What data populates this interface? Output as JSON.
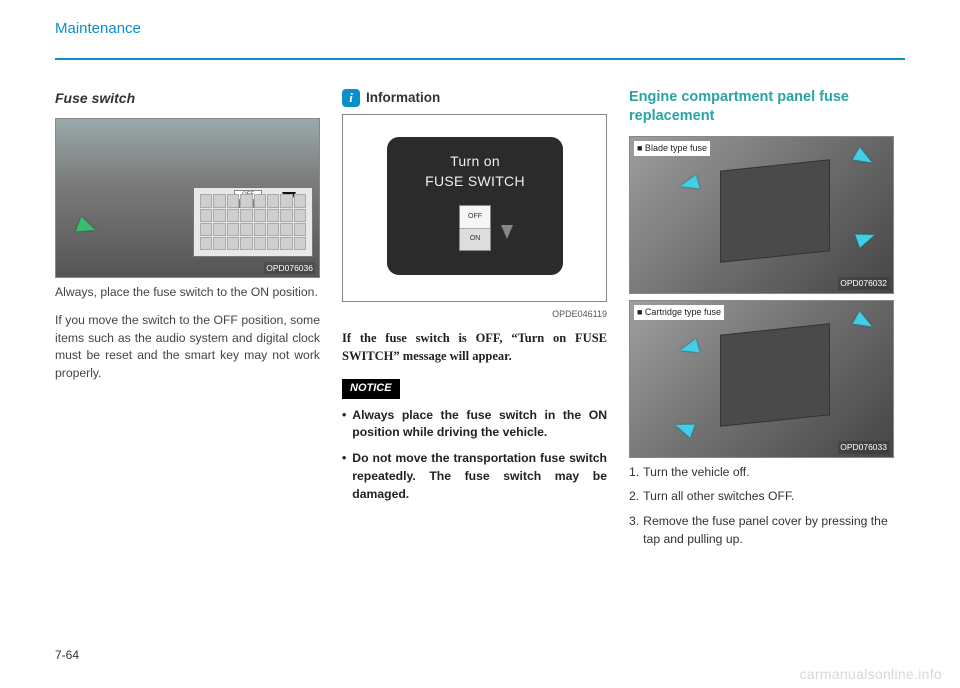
{
  "header": {
    "section": "Maintenance"
  },
  "page_number": "7-64",
  "watermark": "carmanualsonline.info",
  "col1": {
    "heading": "Fuse switch",
    "fig": {
      "code": "OPD076036",
      "switch_off": "OFF",
      "switch_on": "ON"
    },
    "p1": "Always, place the fuse switch to the ON position.",
    "p2": "If you move the switch to the OFF position, some items such as the audio system and digital clock must be reset and the smart key may not work properly."
  },
  "col2": {
    "info_label": "Information",
    "screen": {
      "line1": "Turn on",
      "line2": "FUSE SWITCH",
      "mini_off": "OFF",
      "mini_on": "ON",
      "code": "OPDE046119"
    },
    "serif": "If the fuse switch is OFF, “Turn on FUSE SWITCH” message will appear.",
    "notice_label": "NOTICE",
    "bullets": [
      "Always place the fuse switch in the ON position while driving the vehicle.",
      "Do not move the transportation fuse switch repeatedly. The fuse switch may be damaged."
    ]
  },
  "col3": {
    "heading": "Engine compartment panel fuse replacement",
    "fig_a": {
      "label": "■ Blade type fuse",
      "code": "OPD076032"
    },
    "fig_b": {
      "label": "■ Cartridge type fuse",
      "code": "OPD076033"
    },
    "steps": [
      "Turn the vehicle off.",
      "Turn all other switches OFF.",
      "Remove the fuse panel cover by pressing the tap and pulling up."
    ]
  }
}
